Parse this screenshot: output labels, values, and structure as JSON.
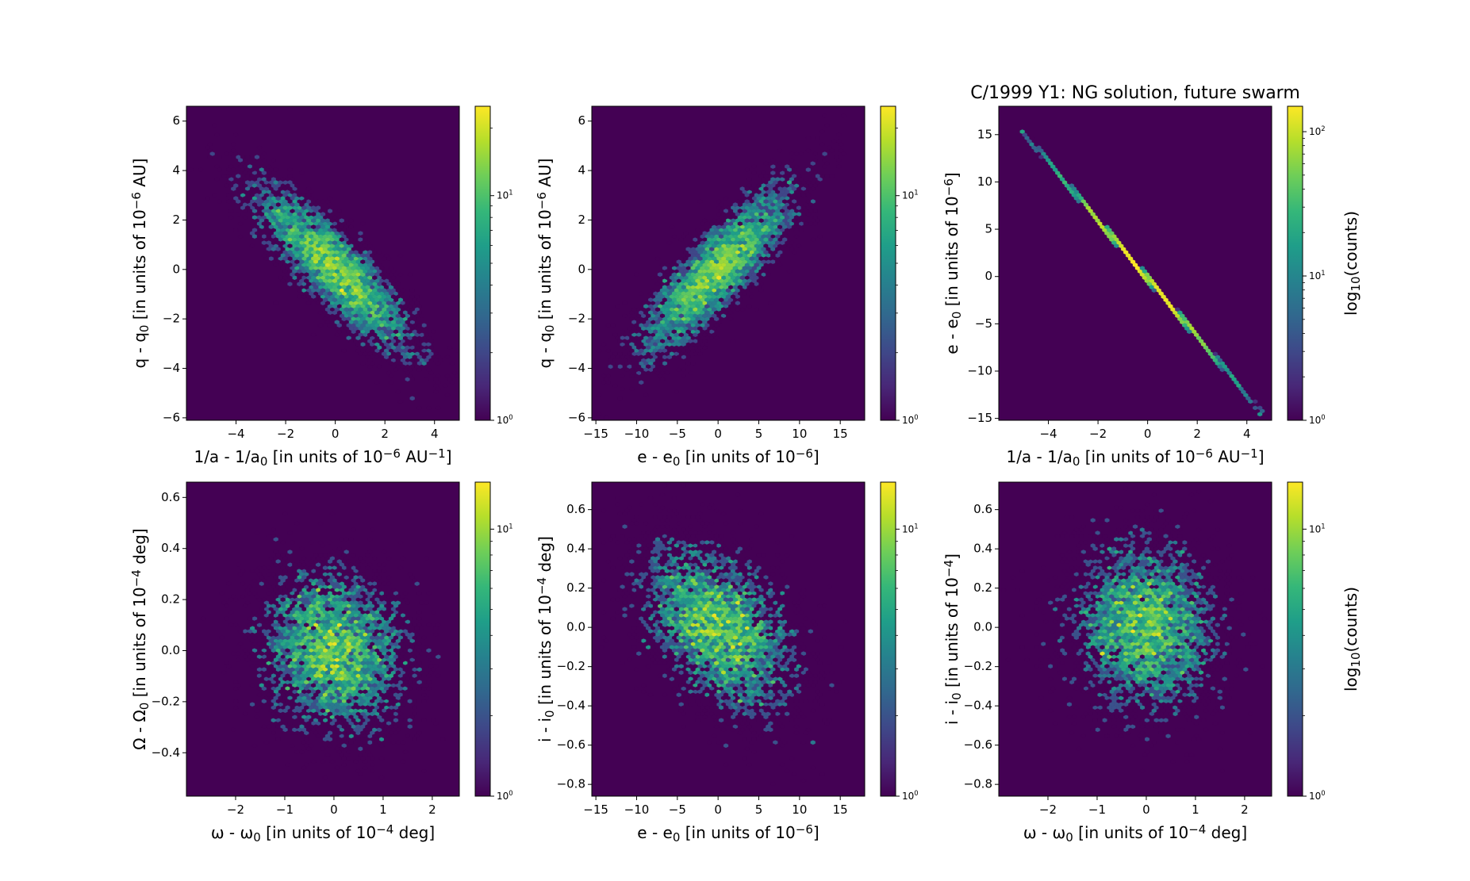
{
  "figure": {
    "title": "C/1999 Y1:  NG solution, future swarm"
  },
  "colorbar_label": "log10(counts)",
  "colors": {
    "background": "#440154",
    "viridis": [
      "#440154",
      "#482878",
      "#3e4989",
      "#31688e",
      "#26828e",
      "#1f9e89",
      "#35b779",
      "#6ece58",
      "#b5de2b",
      "#fde725"
    ]
  },
  "chart_data": [
    {
      "type": "heatmap",
      "variant": "hexbin",
      "xlabel": "1/a - 1/a0 [in units of 10^-6 AU^-1]",
      "ylabel": "q - q0 [in units of 10^-6 AU]",
      "xlim": [
        -6.0,
        5.0
      ],
      "ylim": [
        -6.1,
        6.6
      ],
      "xticks": [
        "-4",
        "-2",
        "0",
        "2",
        "4"
      ],
      "yticks": [
        "-6",
        "-4",
        "-2",
        "0",
        "2",
        "4",
        "6"
      ],
      "distribution": {
        "x_mean": 0.0,
        "x_std": 1.6,
        "y_mean": 0.0,
        "y_std": 1.7,
        "correlation": -0.86
      },
      "color_scale": "log",
      "color_range": [
        1,
        25
      ],
      "colorbar_ticks": [
        "10^0",
        "10^1"
      ],
      "colorbar_label": ""
    },
    {
      "type": "heatmap",
      "variant": "hexbin",
      "xlabel": "e - e0 [in units of 10^-6]",
      "ylabel": "q - q0 [in units of 10^-6 AU]",
      "xlim": [
        -15.5,
        18.0
      ],
      "ylim": [
        -6.1,
        6.6
      ],
      "xticks": [
        "-15",
        "-10",
        "-5",
        "0",
        "5",
        "10",
        "15"
      ],
      "yticks": [
        "-6",
        "-4",
        "-2",
        "0",
        "2",
        "4",
        "6"
      ],
      "distribution": {
        "x_mean": 0.0,
        "x_std": 4.7,
        "y_mean": 0.0,
        "y_std": 1.7,
        "correlation": 0.85
      },
      "color_scale": "log",
      "color_range": [
        1,
        25
      ],
      "colorbar_ticks": [
        "10^0",
        "10^1"
      ],
      "colorbar_label": ""
    },
    {
      "type": "heatmap",
      "variant": "hexbin",
      "title": "C/1999 Y1:  NG solution, future swarm",
      "xlabel": "1/a - 1/a0 [in units of 10^-6 AU^-1]",
      "ylabel": "e - e0 [in units of 10^-6]",
      "xlim": [
        -6.0,
        5.0
      ],
      "ylim": [
        -15.2,
        18.0
      ],
      "xticks": [
        "-4",
        "-2",
        "0",
        "2",
        "4"
      ],
      "yticks": [
        "-15",
        "-10",
        "-5",
        "0",
        "5",
        "10",
        "15"
      ],
      "line": {
        "x": [
          -5.0,
          4.6
        ],
        "y": [
          15.2,
          -14.4
        ]
      },
      "color_scale": "log",
      "color_range": [
        1,
        150
      ],
      "colorbar_ticks": [
        "10^0",
        "10^1",
        "10^2"
      ],
      "colorbar_label": "log10(counts)"
    },
    {
      "type": "heatmap",
      "variant": "hexbin",
      "xlabel": "ω - ω0 [in units of 10^-4 deg]",
      "ylabel": "Ω - Ω0 [in units of 10^-4 deg]",
      "xlim": [
        -3.0,
        2.55
      ],
      "ylim": [
        -0.57,
        0.66
      ],
      "xticks": [
        "-2",
        "-1",
        "0",
        "1",
        "2"
      ],
      "yticks": [
        "-0.4",
        "-0.2",
        "0.0",
        "0.2",
        "0.4",
        "0.6"
      ],
      "distribution": {
        "x_mean": 0.0,
        "x_std": 0.75,
        "y_mean": 0.0,
        "y_std": 0.16,
        "correlation": -0.1
      },
      "color_scale": "log",
      "color_range": [
        1,
        15
      ],
      "colorbar_ticks": [
        "10^0",
        "10^1"
      ],
      "colorbar_label": ""
    },
    {
      "type": "heatmap",
      "variant": "hexbin",
      "xlabel": "e - e0 [in units of 10^-6]",
      "ylabel": "i - i0 [in units of 10^-4 deg]",
      "xlim": [
        -15.5,
        18.0
      ],
      "ylim": [
        -0.86,
        0.74
      ],
      "xticks": [
        "-15",
        "-10",
        "-5",
        "0",
        "5",
        "10",
        "15"
      ],
      "yticks": [
        "-0.8",
        "-0.6",
        "-0.4",
        "-0.2",
        "0.0",
        "0.2",
        "0.4",
        "0.6"
      ],
      "distribution": {
        "x_mean": 0.0,
        "x_std": 4.7,
        "y_mean": 0.0,
        "y_std": 0.22,
        "correlation": -0.45
      },
      "color_scale": "log",
      "color_range": [
        1,
        15
      ],
      "colorbar_ticks": [
        "10^0",
        "10^1"
      ],
      "colorbar_label": ""
    },
    {
      "type": "heatmap",
      "variant": "hexbin",
      "xlabel": "ω - ω0 [in units of 10^-4 deg]",
      "ylabel": "i - i0 [in units of 10^-4]",
      "xlim": [
        -3.0,
        2.55
      ],
      "ylim": [
        -0.86,
        0.74
      ],
      "xticks": [
        "-2",
        "-1",
        "0",
        "1",
        "2"
      ],
      "yticks": [
        "-0.8",
        "-0.6",
        "-0.4",
        "-0.2",
        "0.0",
        "0.2",
        "0.4",
        "0.6"
      ],
      "distribution": {
        "x_mean": 0.0,
        "x_std": 0.75,
        "y_mean": 0.0,
        "y_std": 0.22,
        "correlation": -0.05
      },
      "color_scale": "log",
      "color_range": [
        1,
        15
      ],
      "colorbar_ticks": [
        "10^0",
        "10^1"
      ],
      "colorbar_label": "log10(counts)"
    }
  ]
}
